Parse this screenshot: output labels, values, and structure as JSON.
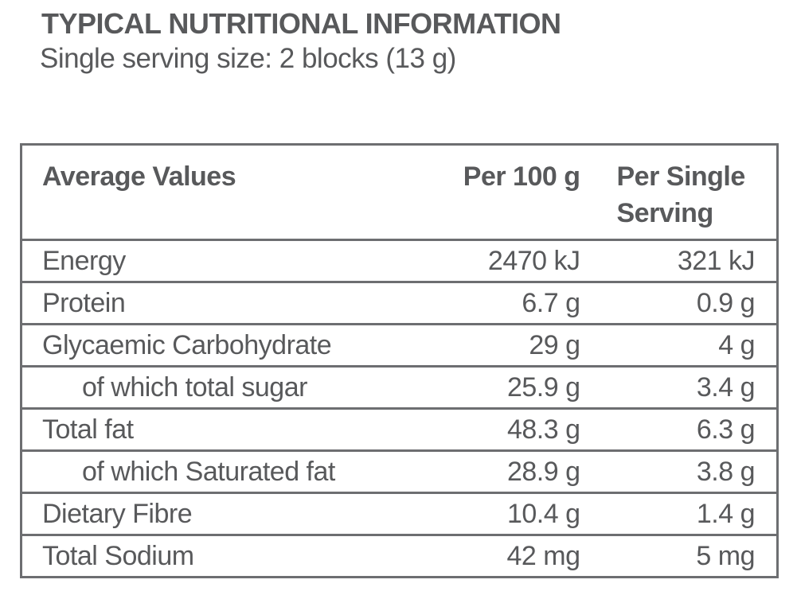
{
  "title": "TYPICAL NUTRITIONAL INFORMATION",
  "subtitle": "Single serving size: 2 blocks (13 g)",
  "colors": {
    "text": "#58595b",
    "border": "#6d6e71",
    "background": "#ffffff"
  },
  "table": {
    "columns": {
      "label": "Average Values",
      "per_100g": "Per 100 g",
      "per_serving": "Per Single Serving"
    },
    "rows": [
      {
        "label": "Energy",
        "per_100g": "2470 kJ",
        "per_serving": "321 kJ",
        "indent": false
      },
      {
        "label": "Protein",
        "per_100g": "6.7 g",
        "per_serving": "0.9 g",
        "indent": false
      },
      {
        "label": "Glycaemic Carbohydrate",
        "per_100g": "29 g",
        "per_serving": "4 g",
        "indent": false
      },
      {
        "label": "of which total sugar",
        "per_100g": "25.9 g",
        "per_serving": "3.4 g",
        "indent": true
      },
      {
        "label": "Total fat",
        "per_100g": "48.3 g",
        "per_serving": "6.3 g",
        "indent": false
      },
      {
        "label": "of which Saturated fat",
        "per_100g": "28.9 g",
        "per_serving": "3.8 g",
        "indent": true
      },
      {
        "label": "Dietary Fibre",
        "per_100g": "10.4 g",
        "per_serving": "1.4 g",
        "indent": false
      },
      {
        "label": "Total Sodium",
        "per_100g": "42 mg",
        "per_serving": "5 mg",
        "indent": false
      }
    ]
  }
}
